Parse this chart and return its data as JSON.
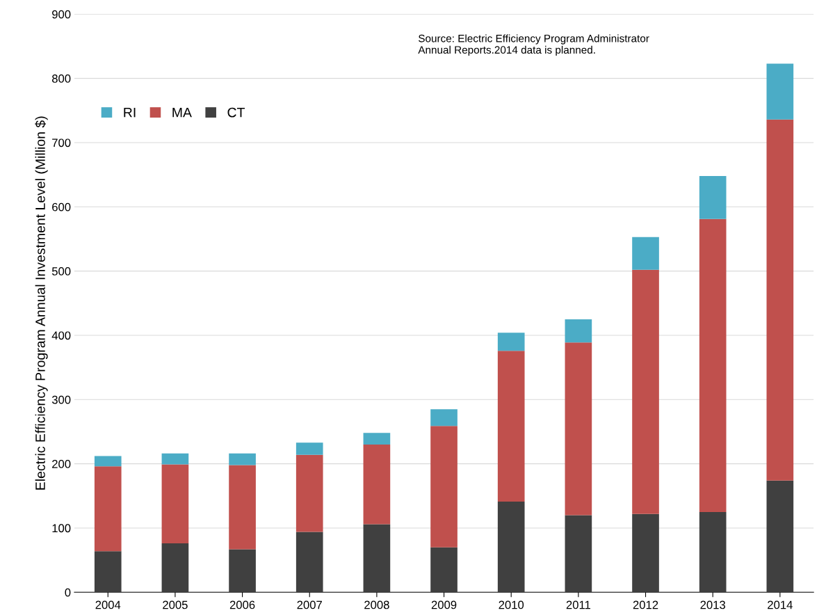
{
  "chart_data": {
    "type": "bar",
    "stacked": true,
    "ylabel": "Electric Efficiency Program Annual Investment Level (Million $)",
    "categories": [
      "2004",
      "2005",
      "2006",
      "2007",
      "2008",
      "2009",
      "2010",
      "2011",
      "2012",
      "2013",
      "2014"
    ],
    "series": [
      {
        "name": "CT",
        "color": "#404040",
        "values": [
          64,
          76,
          67,
          94,
          106,
          70,
          141,
          120,
          122,
          125,
          174
        ]
      },
      {
        "name": "MA",
        "color": "#c0504d",
        "values": [
          132,
          123,
          131,
          120,
          124,
          189,
          235,
          269,
          380,
          456,
          562
        ]
      },
      {
        "name": "RI",
        "color": "#4bacc6",
        "values": [
          16,
          17,
          18,
          19,
          18,
          26,
          28,
          36,
          51,
          67,
          87
        ]
      }
    ],
    "ylim": [
      0,
      900
    ],
    "yticks": [
      0,
      100,
      200,
      300,
      400,
      500,
      600,
      700,
      800,
      900
    ],
    "grid": "y",
    "legend": "top left",
    "annotations": [
      "Source: Electric Efficiency Program Administrator\nAnnual Reports.2014 data is planned."
    ]
  }
}
